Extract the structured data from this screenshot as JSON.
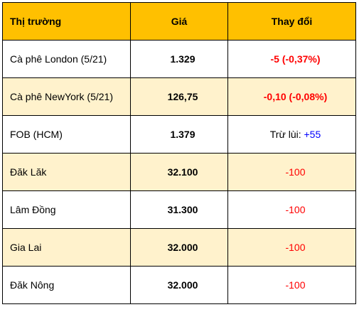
{
  "table": {
    "headers": {
      "market": "Thị trường",
      "price": "Giá",
      "change": "Thay đổi"
    },
    "rows": [
      {
        "market": "Cà phê London (5/21)",
        "price": "1.329",
        "change": "-5 (-0,37%)"
      },
      {
        "market": "Cà phê NewYork (5/21)",
        "price": "126,75",
        "change": "-0,10 (-0,08%)"
      },
      {
        "market": "FOB (HCM)",
        "price": "1.379",
        "change_prefix": "Trừ lùi: ",
        "change_value": "+55"
      },
      {
        "market": "Đăk Lăk",
        "price": "32.100",
        "change": "-100"
      },
      {
        "market": "Lâm Đồng",
        "price": "31.300",
        "change": "-100"
      },
      {
        "market": "Gia Lai",
        "price": "32.000",
        "change": "-100"
      },
      {
        "market": "Đăk Nông",
        "price": "32.000",
        "change": "-100"
      }
    ]
  },
  "colors": {
    "header_bg": "#ffc000",
    "alt_row_bg": "#fff2cc",
    "negative": "#ff0000",
    "positive": "#0000ff"
  }
}
